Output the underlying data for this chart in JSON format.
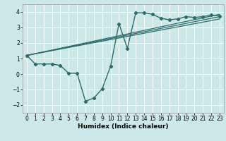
{
  "bg_color": "#cce8e8",
  "grid_color": "#ffffff",
  "line_color": "#2e6b6b",
  "xlabel": "Humidex (Indice chaleur)",
  "ylim": [
    -2.5,
    4.5
  ],
  "xlim": [
    -0.5,
    23.5
  ],
  "yticks": [
    -2,
    -1,
    0,
    1,
    2,
    3,
    4
  ],
  "xticks": [
    0,
    1,
    2,
    3,
    4,
    5,
    6,
    7,
    8,
    9,
    10,
    11,
    12,
    13,
    14,
    15,
    16,
    17,
    18,
    19,
    20,
    21,
    22,
    23
  ],
  "main_x": [
    0,
    1,
    2,
    3,
    4,
    5,
    6,
    7,
    8,
    9,
    10,
    11,
    12,
    13,
    14,
    15,
    16,
    17,
    18,
    19,
    20,
    21,
    22,
    23
  ],
  "main_y": [
    1.2,
    0.65,
    0.65,
    0.65,
    0.55,
    0.05,
    0.05,
    -1.75,
    -1.55,
    -0.95,
    0.5,
    3.25,
    1.65,
    3.95,
    3.95,
    3.85,
    3.6,
    3.5,
    3.55,
    3.7,
    3.65,
    3.7,
    3.8,
    3.75
  ],
  "reg_lines": [
    {
      "x0": 0,
      "y0": 1.2,
      "x1": 23,
      "y1": 3.85
    },
    {
      "x0": 0,
      "y0": 1.2,
      "x1": 23,
      "y1": 3.55
    },
    {
      "x0": 0,
      "y0": 1.2,
      "x1": 23,
      "y1": 3.7
    }
  ],
  "tick_fontsize": 5.5,
  "xlabel_fontsize": 6.5
}
